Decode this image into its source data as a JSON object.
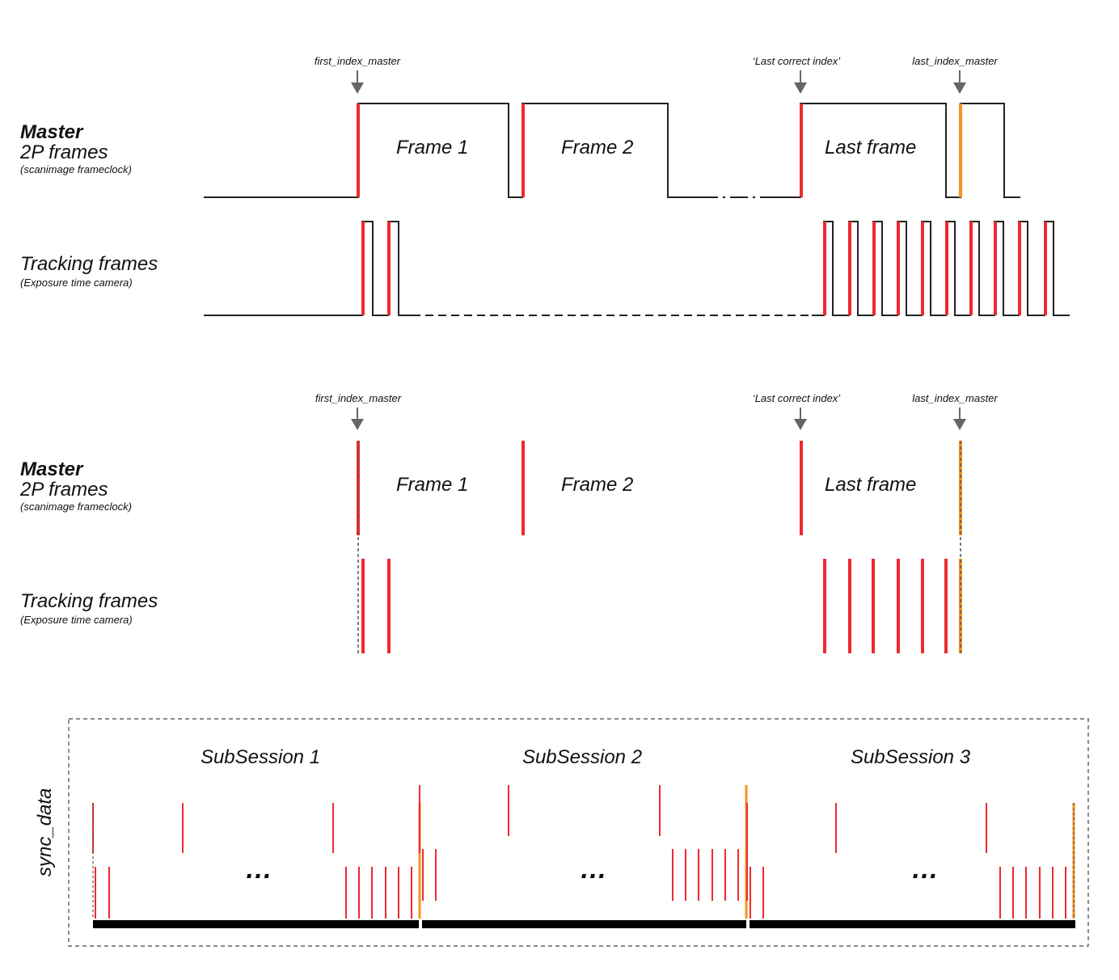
{
  "markers": {
    "first": "first_index_master",
    "last_correct": "‘Last correct index’",
    "last": "last_index_master"
  },
  "rows": {
    "master_title": "Master",
    "master_sub": "2P frames",
    "master_note": "(scanimage frameclock)",
    "tracking_title": "Tracking frames",
    "tracking_note": "(Exposure time camera)"
  },
  "frames": {
    "frame1": "Frame 1",
    "frame2": "Frame 2",
    "last": "Last frame"
  },
  "sync": {
    "axis_label": "sync_data",
    "sessions": [
      "SubSession 1",
      "SubSession 2",
      "SubSession 3"
    ],
    "ellipsis": "…"
  },
  "colors": {
    "line": "#222222",
    "red": "#ee2a2f",
    "orange": "#f7931e",
    "arrow": "#666666",
    "bar": "#000000"
  }
}
